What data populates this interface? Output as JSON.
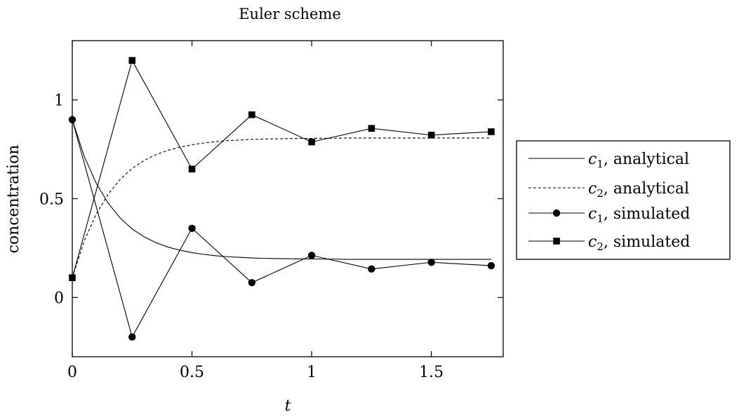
{
  "chart_data": {
    "type": "line",
    "title": "Euler scheme",
    "xlabel": "t",
    "ylabel": "concentration",
    "xlim": [
      0,
      1.8
    ],
    "ylim": [
      -0.3,
      1.3
    ],
    "xticks": [
      0,
      0.5,
      1,
      1.5
    ],
    "xtick_labels": [
      "0",
      "0.5",
      "1",
      "1.5"
    ],
    "yticks": [
      0,
      0.5,
      1
    ],
    "ytick_labels": [
      "0",
      "0.5",
      "1"
    ],
    "grid": false,
    "legend_position": "outside-right",
    "series": [
      {
        "name": "c1, analytical",
        "legend": {
          "symbol": "c",
          "sub": "1",
          "text": ", analytical"
        },
        "style": "solid",
        "marker": "none",
        "color": "#000000",
        "x": [
          0,
          0.05,
          0.1,
          0.15,
          0.2,
          0.25,
          0.3,
          0.35,
          0.4,
          0.45,
          0.5,
          0.55,
          0.6,
          0.65,
          0.7,
          0.75,
          0.8,
          0.85,
          0.9,
          0.95,
          1.0,
          1.05,
          1.1,
          1.15,
          1.2,
          1.25,
          1.3,
          1.35,
          1.4,
          1.45,
          1.5,
          1.55,
          1.6,
          1.65,
          1.7,
          1.75
        ],
        "y": [
          0.9,
          0.714,
          0.578,
          0.477,
          0.402,
          0.347,
          0.307,
          0.277,
          0.255,
          0.239,
          0.227,
          0.218,
          0.211,
          0.206,
          0.203,
          0.2,
          0.198,
          0.197,
          0.196,
          0.195,
          0.195,
          0.194,
          0.194,
          0.193,
          0.193,
          0.193,
          0.193,
          0.193,
          0.193,
          0.193,
          0.193,
          0.193,
          0.193,
          0.193,
          0.193,
          0.193
        ]
      },
      {
        "name": "c2, analytical",
        "legend": {
          "symbol": "c",
          "sub": "2",
          "text": ", analytical"
        },
        "style": "dashed",
        "marker": "none",
        "color": "#000000",
        "x": [
          0,
          0.05,
          0.1,
          0.15,
          0.2,
          0.25,
          0.3,
          0.35,
          0.4,
          0.45,
          0.5,
          0.55,
          0.6,
          0.65,
          0.7,
          0.75,
          0.8,
          0.85,
          0.9,
          0.95,
          1.0,
          1.05,
          1.1,
          1.15,
          1.2,
          1.25,
          1.3,
          1.35,
          1.4,
          1.45,
          1.5,
          1.55,
          1.6,
          1.65,
          1.7,
          1.75
        ],
        "y": [
          0.1,
          0.286,
          0.422,
          0.523,
          0.598,
          0.653,
          0.693,
          0.723,
          0.745,
          0.761,
          0.773,
          0.782,
          0.789,
          0.794,
          0.797,
          0.8,
          0.802,
          0.803,
          0.804,
          0.805,
          0.805,
          0.806,
          0.806,
          0.807,
          0.807,
          0.807,
          0.807,
          0.807,
          0.807,
          0.807,
          0.807,
          0.807,
          0.807,
          0.807,
          0.807,
          0.807
        ]
      },
      {
        "name": "c1, simulated",
        "legend": {
          "symbol": "c",
          "sub": "1",
          "text": ", simulated"
        },
        "style": "solid",
        "marker": "circle",
        "color": "#000000",
        "x": [
          0,
          0.25,
          0.5,
          0.75,
          1.0,
          1.25,
          1.5,
          1.75
        ],
        "y": [
          0.9,
          -0.2,
          0.35,
          0.075,
          0.213,
          0.144,
          0.178,
          0.161
        ]
      },
      {
        "name": "c2, simulated",
        "legend": {
          "symbol": "c",
          "sub": "2",
          "text": ", simulated"
        },
        "style": "solid",
        "marker": "square",
        "color": "#000000",
        "x": [
          0,
          0.25,
          0.5,
          0.75,
          1.0,
          1.25,
          1.5,
          1.75
        ],
        "y": [
          0.1,
          1.2,
          0.65,
          0.925,
          0.787,
          0.856,
          0.822,
          0.839
        ]
      }
    ]
  }
}
